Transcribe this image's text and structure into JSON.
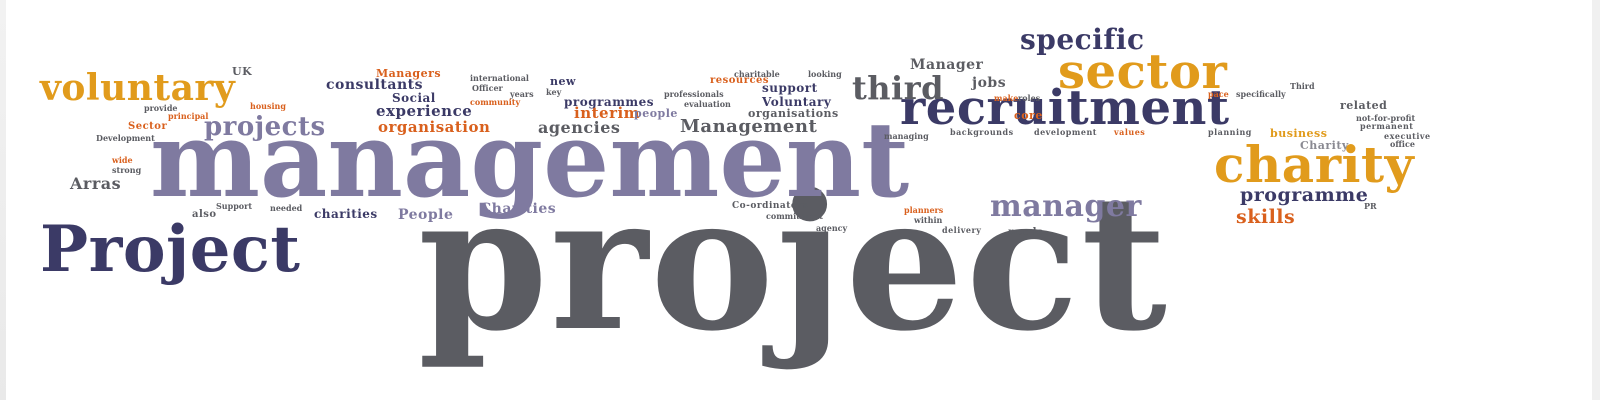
{
  "word_cloud": {
    "big": [
      {
        "text": "project",
        "color": "#5b5c62"
      },
      {
        "text": "management",
        "color": "#7f7aa0"
      },
      {
        "text": "Project",
        "color": "#3b3a66"
      },
      {
        "text": "recruitment",
        "color": "#3b3a66"
      },
      {
        "text": "sector",
        "color": "#e19b1c"
      },
      {
        "text": "charity",
        "color": "#e19b1c"
      },
      {
        "text": "voluntary",
        "color": "#e19b1c"
      },
      {
        "text": "specific",
        "color": "#3b3a66"
      },
      {
        "text": "third",
        "color": "#5b5c62"
      },
      {
        "text": "manager",
        "color": "#7f7aa0"
      },
      {
        "text": "projects",
        "color": "#7f7aa0"
      }
    ],
    "medium": [
      "programme",
      "skills",
      "Management",
      "agencies",
      "organisation",
      "experience",
      "interim",
      "consultants",
      "Arras",
      "Charities",
      "People",
      "charities",
      "Manager",
      "jobs",
      "support",
      "Voluntary",
      "programmes",
      "organisations",
      "Social",
      "related",
      "business",
      "Charity",
      "core",
      "Managers",
      "UK",
      "new",
      "resources",
      "people",
      "needs",
      "delivery",
      "planning",
      "backgrounds",
      "development",
      "values",
      "executive",
      "permanent",
      "Sector",
      "Development",
      "also",
      "charitable",
      "international",
      "key",
      "community",
      "professionals",
      "evaluation",
      "specifically",
      "Third",
      "Officer",
      "years",
      "provide",
      "housing",
      "principal",
      "agency",
      "commitment",
      "Co-ordinators",
      "Support",
      "needed",
      "planners",
      "managing",
      "looking",
      "not-for-profit",
      "office",
      "PR",
      "make",
      "roles",
      "pace",
      "within",
      "strong",
      "wide"
    ]
  }
}
